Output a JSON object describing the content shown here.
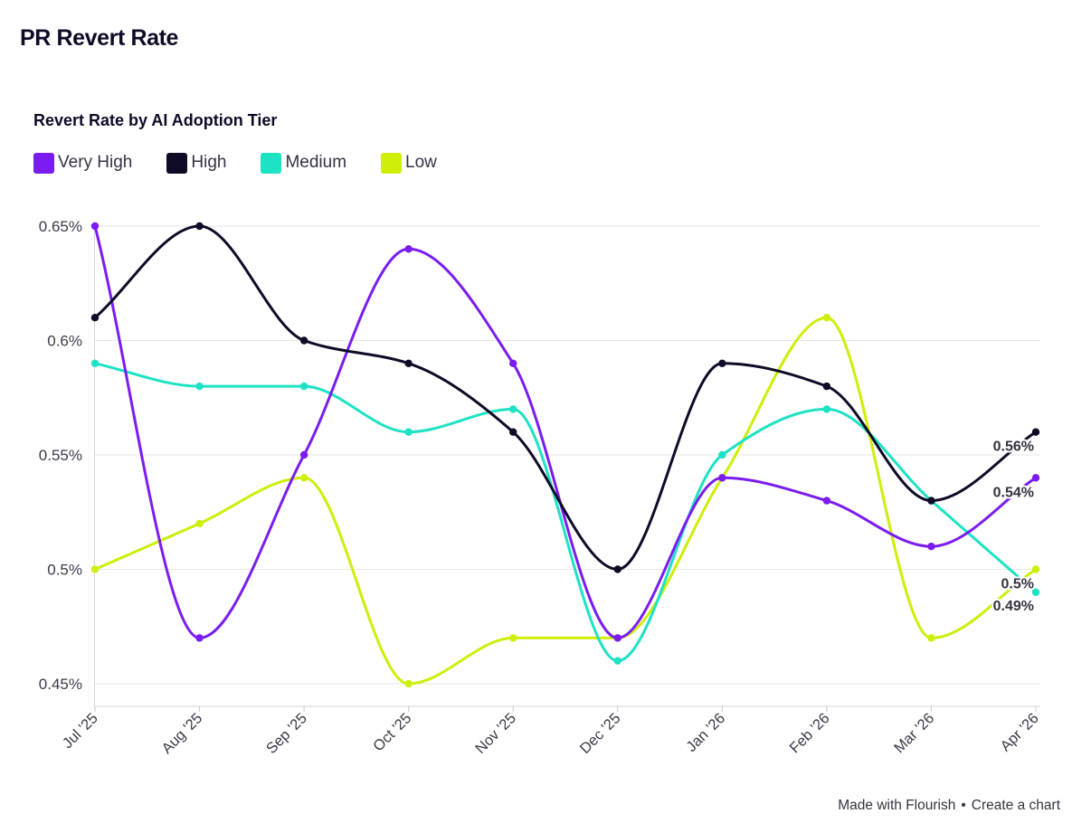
{
  "header": {
    "title": "PR Revert Rate"
  },
  "footer": {
    "made_with": "Made with Flourish",
    "separator": "•",
    "create_chart": "Create a chart"
  },
  "chart_data": {
    "type": "line",
    "title": "Revert Rate by AI Adoption Tier",
    "xlabel": "",
    "ylabel": "",
    "categories": [
      "Jul '25",
      "Aug '25",
      "Sep '25",
      "Oct '25",
      "Nov '25",
      "Dec '25",
      "Jan '26",
      "Feb '26",
      "Mar '26",
      "Apr '26"
    ],
    "ylim": [
      0.44,
      0.65
    ],
    "yticks": [
      0.45,
      0.5,
      0.55,
      0.6,
      0.65
    ],
    "ytick_labels": [
      "0.45%",
      "0.5%",
      "0.55%",
      "0.6%",
      "0.65%"
    ],
    "grid": true,
    "legend_position": "top-left",
    "curve": "smooth",
    "series": [
      {
        "name": "Very High",
        "color": "#7a1cf0",
        "values": [
          0.65,
          0.47,
          0.55,
          0.64,
          0.59,
          0.47,
          0.54,
          0.53,
          0.51,
          0.54
        ],
        "end_label": "0.54%"
      },
      {
        "name": "High",
        "color": "#0e0b26",
        "values": [
          0.61,
          0.65,
          0.6,
          0.59,
          0.56,
          0.5,
          0.59,
          0.58,
          0.53,
          0.56
        ],
        "end_label": "0.56%"
      },
      {
        "name": "Medium",
        "color": "#1de2c4",
        "values": [
          0.59,
          0.58,
          0.58,
          0.56,
          0.57,
          0.46,
          0.55,
          0.57,
          0.53,
          0.49
        ],
        "end_label": "0.49%"
      },
      {
        "name": "Low",
        "color": "#cfee0a",
        "values": [
          0.5,
          0.52,
          0.54,
          0.45,
          0.47,
          0.47,
          0.54,
          0.61,
          0.47,
          0.5
        ],
        "end_label": "0.5%"
      }
    ]
  }
}
